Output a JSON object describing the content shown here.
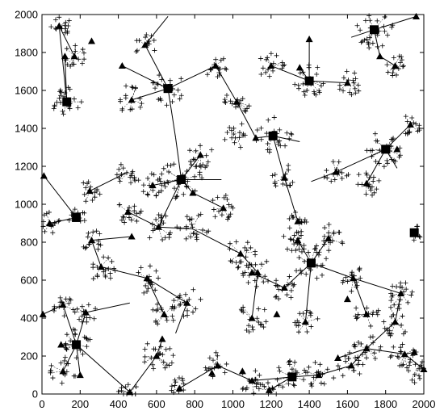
{
  "chart_data": {
    "type": "scatter",
    "title": "",
    "xlabel": "",
    "ylabel": "",
    "xlim": [
      0,
      2000
    ],
    "ylim": [
      0,
      2000
    ],
    "x_ticks": [
      "0",
      "200",
      "400",
      "600",
      "800",
      "1000",
      "1200",
      "1400",
      "1600",
      "1800",
      "2000"
    ],
    "y_ticks": [
      "0",
      "200",
      "400",
      "600",
      "800",
      "1000",
      "1200",
      "1400",
      "1600",
      "1800",
      "2000"
    ],
    "grid": false,
    "squares": [
      [
        130,
        1540
      ],
      [
        660,
        1610
      ],
      [
        1400,
        1650
      ],
      [
        1740,
        1920
      ],
      [
        1210,
        1360
      ],
      [
        1800,
        1290
      ],
      [
        730,
        1130
      ],
      [
        180,
        930
      ],
      [
        1950,
        850
      ],
      [
        1410,
        690
      ],
      [
        180,
        260
      ],
      [
        1310,
        90
      ]
    ],
    "triangles": [
      [
        90,
        1940
      ],
      [
        120,
        1780
      ],
      [
        170,
        1780
      ],
      [
        260,
        1860
      ],
      [
        420,
        1730
      ],
      [
        470,
        1550
      ],
      [
        540,
        1840
      ],
      [
        910,
        1730
      ],
      [
        1020,
        1540
      ],
      [
        1120,
        1350
      ],
      [
        1200,
        1730
      ],
      [
        1350,
        1720
      ],
      [
        1400,
        1870
      ],
      [
        1600,
        1640
      ],
      [
        1770,
        1780
      ],
      [
        1850,
        1730
      ],
      [
        1960,
        1990
      ],
      [
        1270,
        1140
      ],
      [
        1540,
        1170
      ],
      [
        1700,
        1110
      ],
      [
        1860,
        1290
      ],
      [
        1930,
        1420
      ],
      [
        10,
        1150
      ],
      [
        40,
        900
      ],
      [
        250,
        1070
      ],
      [
        260,
        810
      ],
      [
        450,
        960
      ],
      [
        580,
        1100
      ],
      [
        610,
        880
      ],
      [
        790,
        1060
      ],
      [
        830,
        1260
      ],
      [
        950,
        980
      ],
      [
        1040,
        740
      ],
      [
        1130,
        640
      ],
      [
        1340,
        810
      ],
      [
        1340,
        910
      ],
      [
        1500,
        820
      ],
      [
        1630,
        610
      ],
      [
        1700,
        420
      ],
      [
        1880,
        530
      ],
      [
        470,
        830
      ],
      [
        310,
        670
      ],
      [
        550,
        610
      ],
      [
        640,
        420
      ],
      [
        760,
        480
      ],
      [
        110,
        470
      ],
      [
        230,
        430
      ],
      [
        1100,
        640
      ],
      [
        1270,
        560
      ],
      [
        1380,
        380
      ],
      [
        1100,
        400
      ],
      [
        1230,
        420
      ],
      [
        1600,
        500
      ],
      [
        1850,
        380
      ],
      [
        1950,
        220
      ],
      [
        2000,
        130
      ],
      [
        1550,
        190
      ],
      [
        1700,
        240
      ],
      [
        1900,
        210
      ],
      [
        1100,
        70
      ],
      [
        920,
        150
      ],
      [
        1050,
        120
      ],
      [
        890,
        110
      ],
      [
        1190,
        20
      ],
      [
        1450,
        100
      ],
      [
        1620,
        150
      ],
      [
        720,
        30
      ],
      [
        600,
        200
      ],
      [
        460,
        10
      ],
      [
        630,
        290
      ],
      [
        110,
        120
      ],
      [
        200,
        100
      ],
      [
        100,
        260
      ],
      [
        5,
        420
      ]
    ],
    "edges": [
      [
        [
          130,
          1540
        ],
        [
          90,
          1940
        ]
      ],
      [
        [
          130,
          1540
        ],
        [
          120,
          1780
        ]
      ],
      [
        [
          90,
          1940
        ],
        [
          170,
          1780
        ]
      ],
      [
        [
          660,
          1610
        ],
        [
          420,
          1730
        ]
      ],
      [
        [
          660,
          1610
        ],
        [
          470,
          1550
        ]
      ],
      [
        [
          660,
          1610
        ],
        [
          540,
          1840
        ]
      ],
      [
        [
          540,
          1840
        ],
        [
          660,
          1990
        ]
      ],
      [
        [
          660,
          1610
        ],
        [
          910,
          1730
        ]
      ],
      [
        [
          910,
          1730
        ],
        [
          1020,
          1540
        ]
      ],
      [
        [
          1020,
          1540
        ],
        [
          1120,
          1350
        ]
      ],
      [
        [
          660,
          1610
        ],
        [
          700,
          1350
        ]
      ],
      [
        [
          700,
          1350
        ],
        [
          730,
          1130
        ]
      ],
      [
        [
          1400,
          1650
        ],
        [
          1200,
          1730
        ]
      ],
      [
        [
          1400,
          1650
        ],
        [
          1350,
          1720
        ]
      ],
      [
        [
          1400,
          1650
        ],
        [
          1400,
          1870
        ]
      ],
      [
        [
          1400,
          1650
        ],
        [
          1600,
          1640
        ]
      ],
      [
        [
          1740,
          1920
        ],
        [
          1770,
          1780
        ]
      ],
      [
        [
          1770,
          1780
        ],
        [
          1850,
          1730
        ]
      ],
      [
        [
          1740,
          1920
        ],
        [
          1960,
          1990
        ]
      ],
      [
        [
          1740,
          1920
        ],
        [
          1620,
          1880
        ]
      ],
      [
        [
          1210,
          1360
        ],
        [
          1120,
          1350
        ]
      ],
      [
        [
          1210,
          1360
        ],
        [
          1270,
          1140
        ]
      ],
      [
        [
          1210,
          1360
        ],
        [
          1350,
          1330
        ]
      ],
      [
        [
          1800,
          1290
        ],
        [
          1540,
          1170
        ]
      ],
      [
        [
          1800,
          1290
        ],
        [
          1700,
          1110
        ]
      ],
      [
        [
          1800,
          1290
        ],
        [
          1930,
          1420
        ]
      ],
      [
        [
          1800,
          1290
        ],
        [
          1860,
          1190
        ]
      ],
      [
        [
          1540,
          1170
        ],
        [
          1410,
          1120
        ]
      ],
      [
        [
          730,
          1130
        ],
        [
          580,
          1100
        ]
      ],
      [
        [
          730,
          1130
        ],
        [
          830,
          1260
        ]
      ],
      [
        [
          730,
          1130
        ],
        [
          940,
          1130
        ]
      ],
      [
        [
          730,
          1130
        ],
        [
          790,
          1060
        ]
      ],
      [
        [
          790,
          1060
        ],
        [
          950,
          980
        ]
      ],
      [
        [
          730,
          1130
        ],
        [
          610,
          880
        ]
      ],
      [
        [
          610,
          880
        ],
        [
          450,
          960
        ]
      ],
      [
        [
          610,
          880
        ],
        [
          790,
          870
        ]
      ],
      [
        [
          790,
          870
        ],
        [
          1040,
          740
        ]
      ],
      [
        [
          180,
          930
        ],
        [
          40,
          900
        ]
      ],
      [
        [
          180,
          930
        ],
        [
          10,
          1150
        ]
      ],
      [
        [
          250,
          1070
        ],
        [
          450,
          1170
        ]
      ],
      [
        [
          260,
          810
        ],
        [
          470,
          830
        ]
      ],
      [
        [
          260,
          810
        ],
        [
          310,
          670
        ]
      ],
      [
        [
          310,
          670
        ],
        [
          550,
          610
        ]
      ],
      [
        [
          550,
          610
        ],
        [
          640,
          420
        ]
      ],
      [
        [
          550,
          610
        ],
        [
          760,
          480
        ]
      ],
      [
        [
          760,
          480
        ],
        [
          700,
          320
        ]
      ],
      [
        [
          1410,
          690
        ],
        [
          1340,
          810
        ]
      ],
      [
        [
          1410,
          690
        ],
        [
          1500,
          820
        ]
      ],
      [
        [
          1410,
          690
        ],
        [
          1630,
          610
        ]
      ],
      [
        [
          1410,
          690
        ],
        [
          1380,
          380
        ]
      ],
      [
        [
          1410,
          690
        ],
        [
          1270,
          560
        ]
      ],
      [
        [
          1270,
          560
        ],
        [
          1100,
          640
        ]
      ],
      [
        [
          1040,
          740
        ],
        [
          1130,
          640
        ]
      ],
      [
        [
          1130,
          640
        ],
        [
          1100,
          400
        ]
      ],
      [
        [
          1340,
          910
        ],
        [
          1270,
          1140
        ]
      ],
      [
        [
          1630,
          610
        ],
        [
          1700,
          420
        ]
      ],
      [
        [
          1630,
          610
        ],
        [
          1880,
          530
        ]
      ],
      [
        [
          1880,
          530
        ],
        [
          1850,
          380
        ]
      ],
      [
        [
          180,
          260
        ],
        [
          110,
          470
        ]
      ],
      [
        [
          180,
          260
        ],
        [
          230,
          430
        ]
      ],
      [
        [
          230,
          430
        ],
        [
          460,
          480
        ]
      ],
      [
        [
          180,
          260
        ],
        [
          100,
          260
        ]
      ],
      [
        [
          180,
          260
        ],
        [
          110,
          120
        ]
      ],
      [
        [
          180,
          260
        ],
        [
          200,
          100
        ]
      ],
      [
        [
          180,
          260
        ],
        [
          460,
          10
        ]
      ],
      [
        [
          460,
          10
        ],
        [
          600,
          200
        ]
      ],
      [
        [
          600,
          200
        ],
        [
          630,
          290
        ]
      ],
      [
        [
          1310,
          90
        ],
        [
          1100,
          70
        ]
      ],
      [
        [
          1310,
          90
        ],
        [
          1450,
          100
        ]
      ],
      [
        [
          1450,
          100
        ],
        [
          1620,
          150
        ]
      ],
      [
        [
          1620,
          150
        ],
        [
          1700,
          240
        ]
      ],
      [
        [
          1700,
          240
        ],
        [
          1850,
          380
        ]
      ],
      [
        [
          1700,
          240
        ],
        [
          1900,
          210
        ]
      ],
      [
        [
          1900,
          210
        ],
        [
          1950,
          220
        ]
      ],
      [
        [
          1900,
          210
        ],
        [
          2000,
          130
        ]
      ],
      [
        [
          1100,
          70
        ],
        [
          920,
          150
        ]
      ],
      [
        [
          920,
          150
        ],
        [
          720,
          30
        ]
      ],
      [
        [
          1310,
          90
        ],
        [
          1190,
          20
        ]
      ],
      [
        [
          1550,
          190
        ],
        [
          1700,
          240
        ]
      ],
      [
        [
          5,
          420
        ],
        [
          110,
          470
        ]
      ]
    ],
    "plus_clusters": [
      [
        130,
        1540,
        80,
        22
      ],
      [
        90,
        1940,
        60,
        14
      ],
      [
        170,
        1780,
        60,
        14
      ],
      [
        470,
        1550,
        80,
        16
      ],
      [
        540,
        1840,
        60,
        14
      ],
      [
        660,
        1610,
        90,
        22
      ],
      [
        910,
        1730,
        70,
        16
      ],
      [
        1020,
        1540,
        70,
        16
      ],
      [
        1200,
        1730,
        70,
        16
      ],
      [
        1400,
        1650,
        90,
        22
      ],
      [
        1620,
        1640,
        70,
        16
      ],
      [
        1740,
        1920,
        100,
        26
      ],
      [
        1850,
        1730,
        60,
        14
      ],
      [
        1210,
        1360,
        100,
        24
      ],
      [
        1020,
        1360,
        70,
        16
      ],
      [
        1800,
        1290,
        100,
        26
      ],
      [
        1540,
        1170,
        70,
        16
      ],
      [
        1700,
        1110,
        70,
        18
      ],
      [
        1930,
        1420,
        60,
        14
      ],
      [
        730,
        1130,
        110,
        30
      ],
      [
        580,
        1100,
        80,
        18
      ],
      [
        830,
        1260,
        70,
        16
      ],
      [
        450,
        1170,
        70,
        16
      ],
      [
        250,
        1070,
        60,
        14
      ],
      [
        40,
        900,
        60,
        14
      ],
      [
        180,
        930,
        50,
        10
      ],
      [
        450,
        960,
        70,
        16
      ],
      [
        610,
        880,
        80,
        18
      ],
      [
        790,
        870,
        90,
        22
      ],
      [
        950,
        980,
        70,
        16
      ],
      [
        260,
        810,
        60,
        14
      ],
      [
        310,
        670,
        80,
        18
      ],
      [
        550,
        610,
        80,
        18
      ],
      [
        640,
        420,
        70,
        16
      ],
      [
        760,
        480,
        80,
        18
      ],
      [
        1040,
        740,
        80,
        18
      ],
      [
        1130,
        640,
        80,
        18
      ],
      [
        1340,
        810,
        80,
        18
      ],
      [
        1500,
        820,
        80,
        18
      ],
      [
        1410,
        690,
        90,
        20
      ],
      [
        1630,
        610,
        70,
        16
      ],
      [
        1880,
        530,
        80,
        18
      ],
      [
        1700,
        420,
        70,
        14
      ],
      [
        1850,
        380,
        80,
        18
      ],
      [
        1270,
        560,
        70,
        16
      ],
      [
        1100,
        400,
        80,
        18
      ],
      [
        1380,
        380,
        70,
        16
      ],
      [
        180,
        260,
        90,
        22
      ],
      [
        110,
        470,
        60,
        14
      ],
      [
        230,
        430,
        60,
        14
      ],
      [
        110,
        120,
        70,
        16
      ],
      [
        600,
        200,
        90,
        22
      ],
      [
        460,
        10,
        60,
        12
      ],
      [
        1310,
        90,
        90,
        20
      ],
      [
        1450,
        100,
        80,
        18
      ],
      [
        1620,
        150,
        70,
        16
      ],
      [
        1700,
        240,
        80,
        18
      ],
      [
        1900,
        210,
        80,
        18
      ],
      [
        1950,
        120,
        70,
        14
      ],
      [
        1100,
        70,
        70,
        16
      ],
      [
        920,
        150,
        70,
        16
      ],
      [
        720,
        30,
        60,
        12
      ],
      [
        1190,
        20,
        60,
        12
      ],
      [
        1950,
        850,
        40,
        8
      ],
      [
        1340,
        910,
        60,
        14
      ],
      [
        1270,
        1140,
        70,
        16
      ]
    ]
  }
}
